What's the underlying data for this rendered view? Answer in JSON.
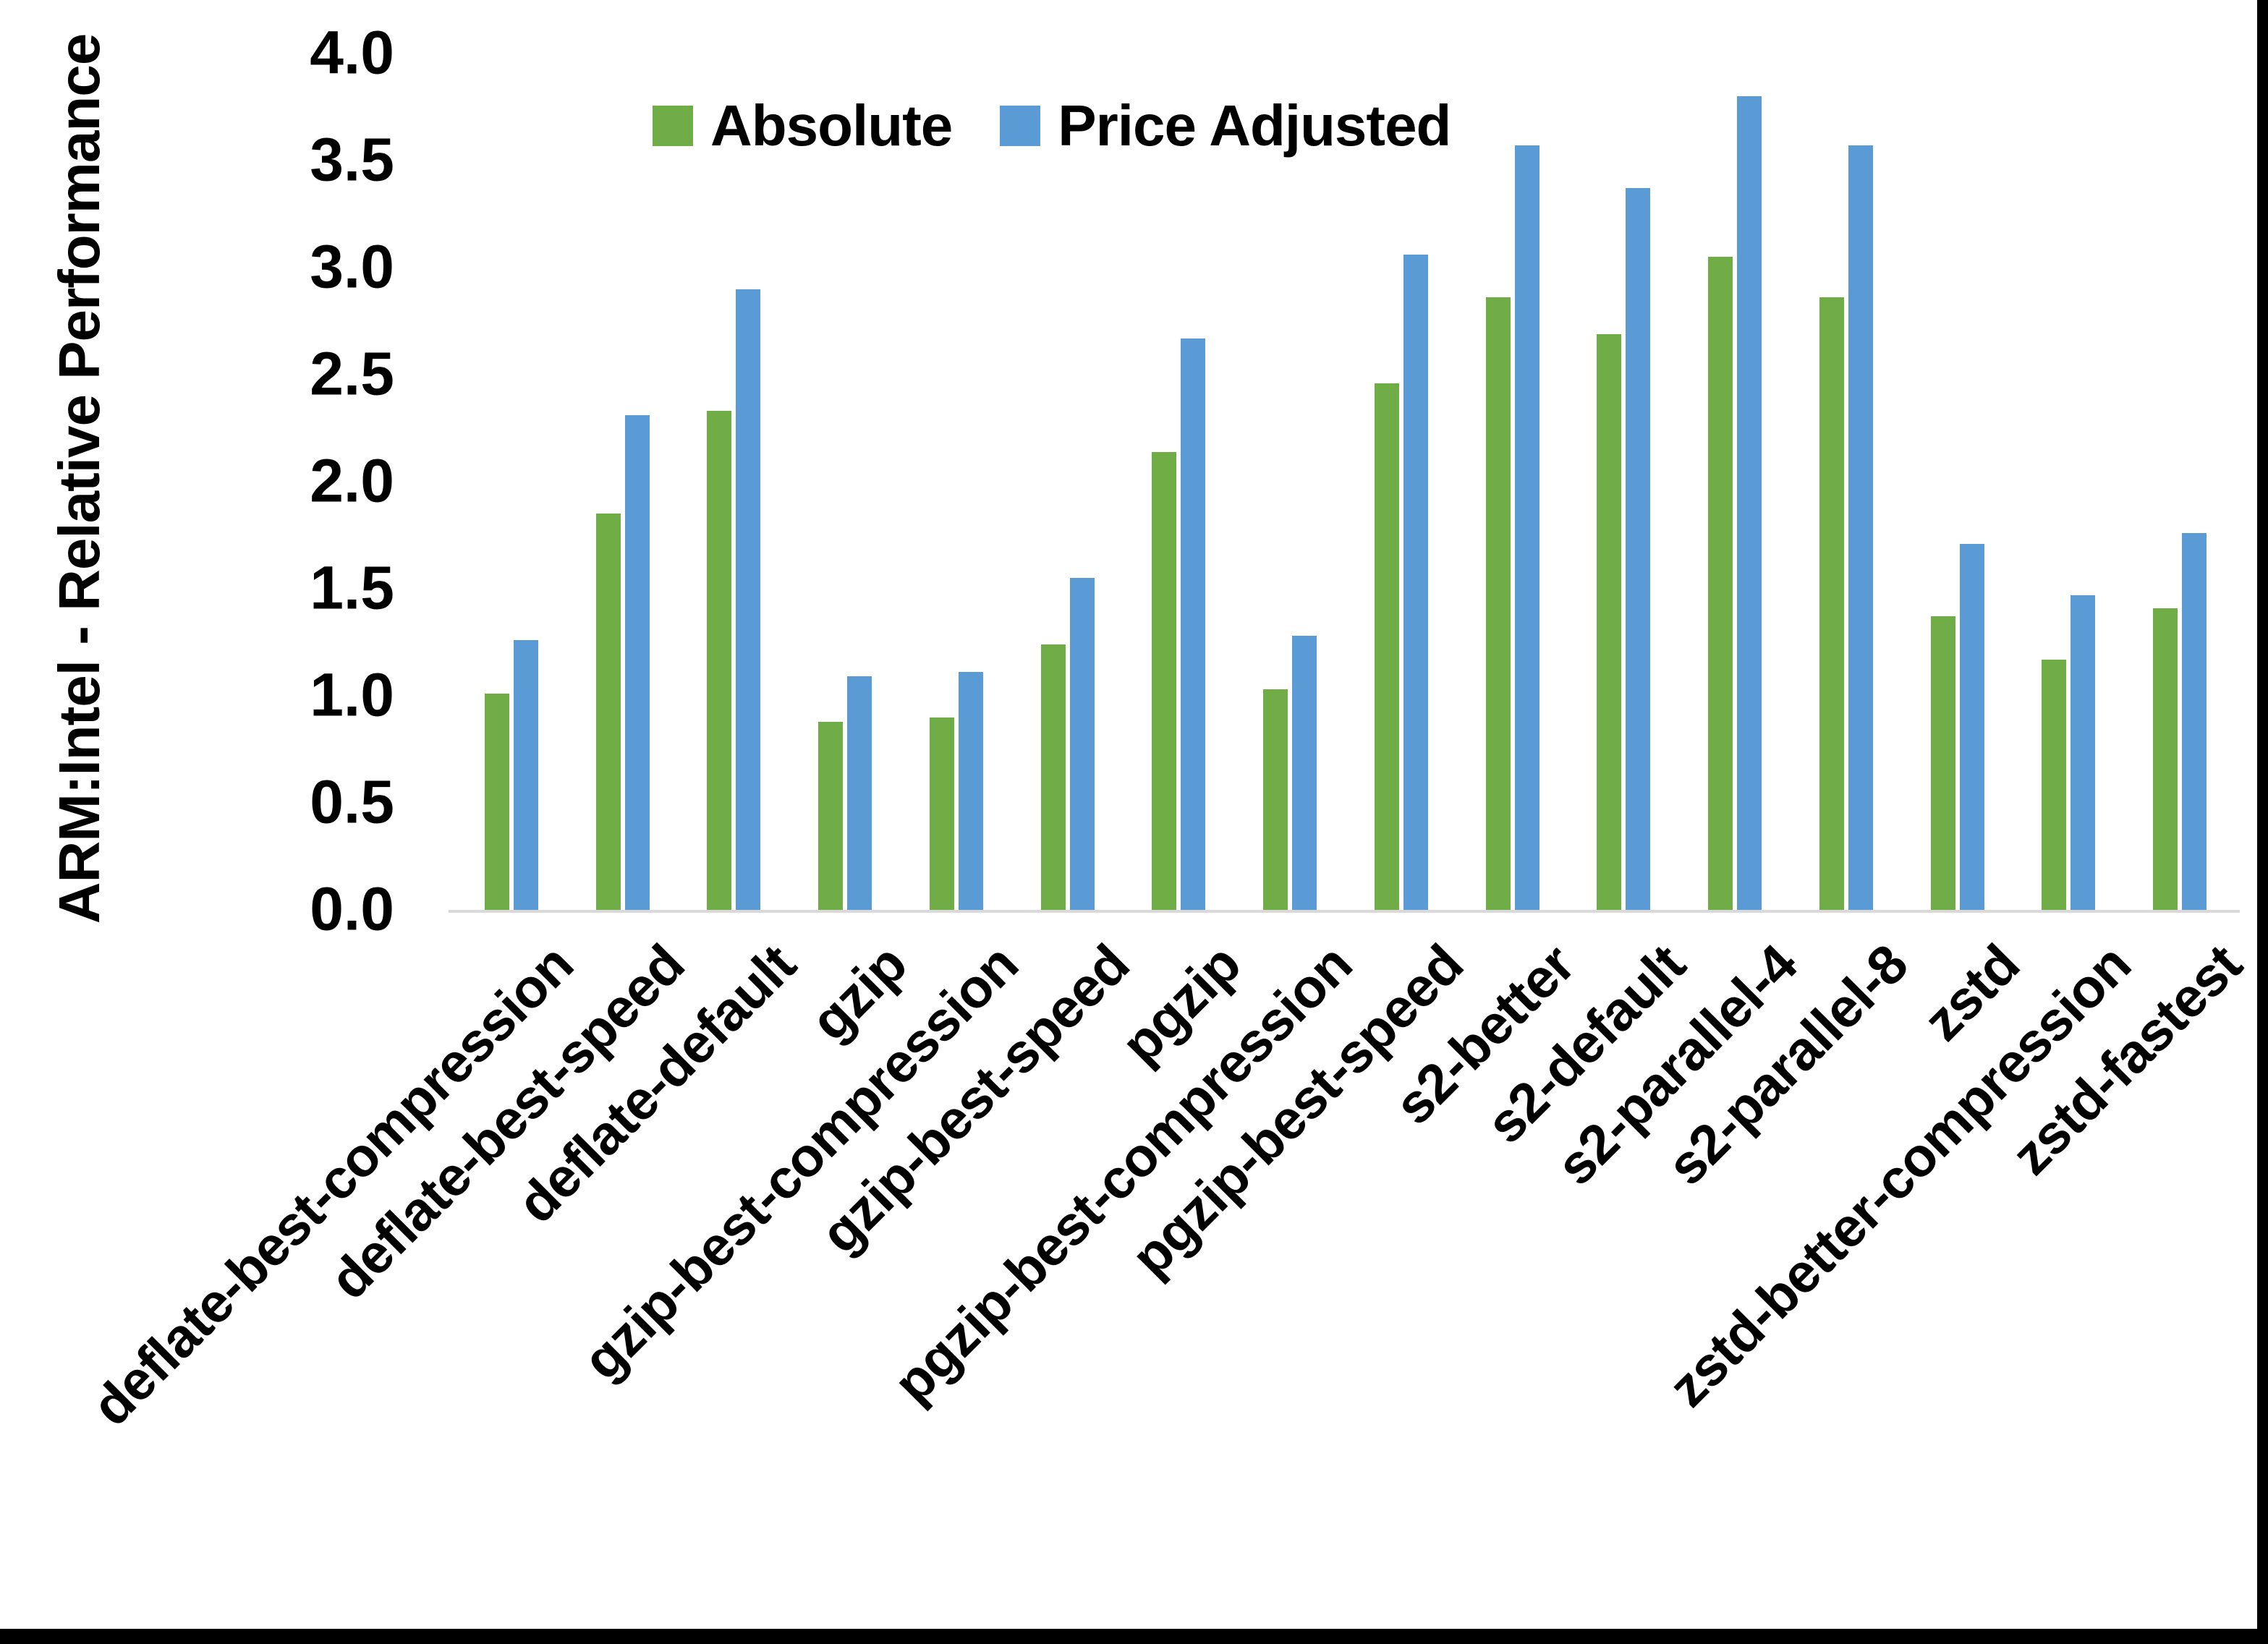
{
  "chart_data": {
    "type": "bar",
    "title": "",
    "xlabel": "",
    "ylabel": "ARM:Intel - Relative Performance",
    "ylim": [
      0,
      4.0
    ],
    "ytick_step": 0.5,
    "ytick_format_decimals": 1,
    "grid": false,
    "legend_position": "top-center",
    "background": "#FFFFFF",
    "axis_line_color": "#D9D9D9",
    "text_color": "#000000",
    "categories": [
      "deflate-best-compression",
      "deflate-best-speed",
      "deflate-default",
      "gzip",
      "gzip-best-compression",
      "gzip-best-speed",
      "pgzip",
      "pgzip-best-compression",
      "pgzip-best-speed",
      "s2-better",
      "s2-default",
      "s2-parallel-4",
      "s2-parallel-8",
      "zstd",
      "zstd-better-compression",
      "zstd-fastest"
    ],
    "series": [
      {
        "name": "Absolute",
        "color": "#70AD47",
        "values": [
          1.01,
          1.85,
          2.33,
          0.88,
          0.9,
          1.24,
          2.14,
          1.03,
          2.46,
          2.86,
          2.69,
          3.05,
          2.86,
          1.37,
          1.17,
          1.41
        ]
      },
      {
        "name": "Price Adjusted",
        "color": "#5B9BD5",
        "values": [
          1.26,
          2.31,
          2.9,
          1.09,
          1.11,
          1.55,
          2.67,
          1.28,
          3.06,
          3.57,
          3.37,
          3.8,
          3.57,
          1.71,
          1.47,
          1.76
        ]
      }
    ]
  },
  "window": {
    "frame_color": "#000000"
  }
}
